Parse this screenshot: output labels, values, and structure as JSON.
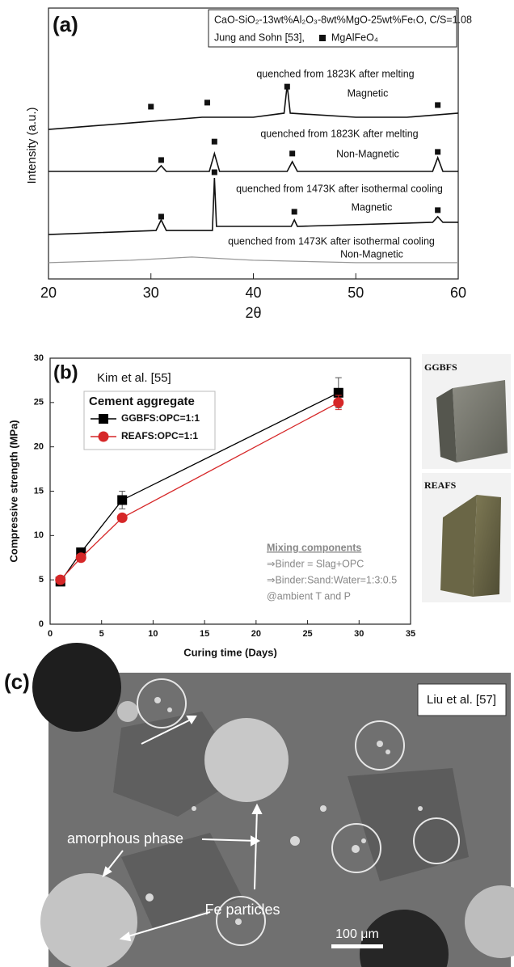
{
  "chart_data": [
    {
      "type": "line",
      "panel_label": "(a)",
      "xlabel": "2θ",
      "ylabel": "Intensity (a.u.)",
      "legend_text": [
        "CaO-SiO₂-13wt%Al₂O₃-8wt%MgO-25wt%FeₜO, C/S=1.08",
        "Jung and Sohn [53],"
      ],
      "marker_label": "MgAlFeO₄",
      "xlim": [
        20,
        60
      ],
      "xticks": [
        20,
        30,
        40,
        50,
        60
      ],
      "ylim": [
        0,
        100
      ],
      "series": [
        {
          "name": "quenched from 1823K after melting",
          "subtitle": "Magnetic",
          "color": "#111111",
          "x": [
            20,
            30,
            35,
            40,
            43,
            43.3,
            43.6,
            50,
            55,
            60
          ],
          "values": [
            55.2,
            58.2,
            59.7,
            59.7,
            61.2,
            71.6,
            61.2,
            59.7,
            59.7,
            61.2
          ],
          "peaks_x": [
            30,
            35.5,
            43.3,
            58
          ],
          "peaks_y": [
            63.6,
            65.1,
            71.0,
            64.2
          ]
        },
        {
          "name": "quenched from 1823K after melting",
          "subtitle": "Non-Magnetic",
          "color": "#111111",
          "x": [
            20,
            30.5,
            31,
            31.5,
            35.7,
            36.2,
            36.7,
            43.3,
            43.8,
            44.3,
            57.5,
            58,
            58.5,
            60
          ],
          "values": [
            39.7,
            39.7,
            41.8,
            39.7,
            39.7,
            46.3,
            39.7,
            39.7,
            43.3,
            39.7,
            39.7,
            44.8,
            39.7,
            39.7
          ],
          "peaks_x": [
            31,
            36.2,
            43.8,
            58
          ],
          "peaks_y": [
            43.9,
            50.7,
            46.3,
            46.9
          ]
        },
        {
          "name": "quenched from 1473K after isothermal cooling",
          "subtitle": "Magnetic",
          "color": "#111111",
          "x": [
            20,
            30.5,
            31,
            31.5,
            36,
            36.2,
            36.4,
            43.7,
            44,
            44.3,
            57.5,
            58,
            58.5,
            60
          ],
          "values": [
            16.4,
            17.9,
            21.8,
            17.9,
            17.9,
            37.3,
            19.4,
            19.4,
            21.8,
            19.4,
            20.9,
            23.0,
            20.9,
            20.9
          ],
          "peaks_x": [
            31,
            36.2,
            44,
            58
          ],
          "peaks_y": [
            23.0,
            39.4,
            24.8,
            25.4
          ]
        },
        {
          "name": "quenched from 1473K after isothermal cooling",
          "subtitle": "Non-Magnetic",
          "color": "#999999",
          "x": [
            20,
            28,
            34,
            40,
            50,
            60
          ],
          "values": [
            6.0,
            6.9,
            8.1,
            6.9,
            6.0,
            6.0
          ]
        }
      ]
    },
    {
      "type": "line",
      "panel_label": "(b)",
      "annotation": "Kim et al. [55]",
      "legend_title": "Cement aggregate",
      "xlabel": "Curing time (Days)",
      "ylabel": "Compressive strength (MPa)",
      "notes": [
        "Mixing components",
        "⇒Binder = Slag+OPC",
        "⇒Binder:Sand:Water=1:3:0.5",
        "@ambient T and P"
      ],
      "photo_labels": [
        "GGBFS",
        "REAFS"
      ],
      "xlim": [
        0,
        35
      ],
      "xticks": [
        0,
        5,
        10,
        15,
        20,
        25,
        30,
        35
      ],
      "ylim": [
        0,
        30
      ],
      "yticks": [
        0,
        5,
        10,
        15,
        20,
        25,
        30
      ],
      "x": [
        1,
        3,
        7,
        28
      ],
      "series": [
        {
          "name": "GGBFS:OPC=1:1",
          "color": "#000000",
          "marker": "square",
          "values": [
            4.8,
            8.1,
            14,
            26.1
          ],
          "errors": [
            0.3,
            0.3,
            1.0,
            1.7
          ]
        },
        {
          "name": "REAFS:OPC=1:1",
          "color": "#d62728",
          "marker": "circle",
          "values": [
            5,
            7.5,
            12,
            25
          ],
          "errors": [
            0.3,
            0.3,
            0.3,
            0.8
          ]
        }
      ]
    }
  ],
  "panel_c": {
    "label": "(c)",
    "source": "Liu et al. [57]",
    "phase_label": "amorphous phase",
    "particle_label": "Fe particles",
    "scale_bar": "100 μm"
  }
}
